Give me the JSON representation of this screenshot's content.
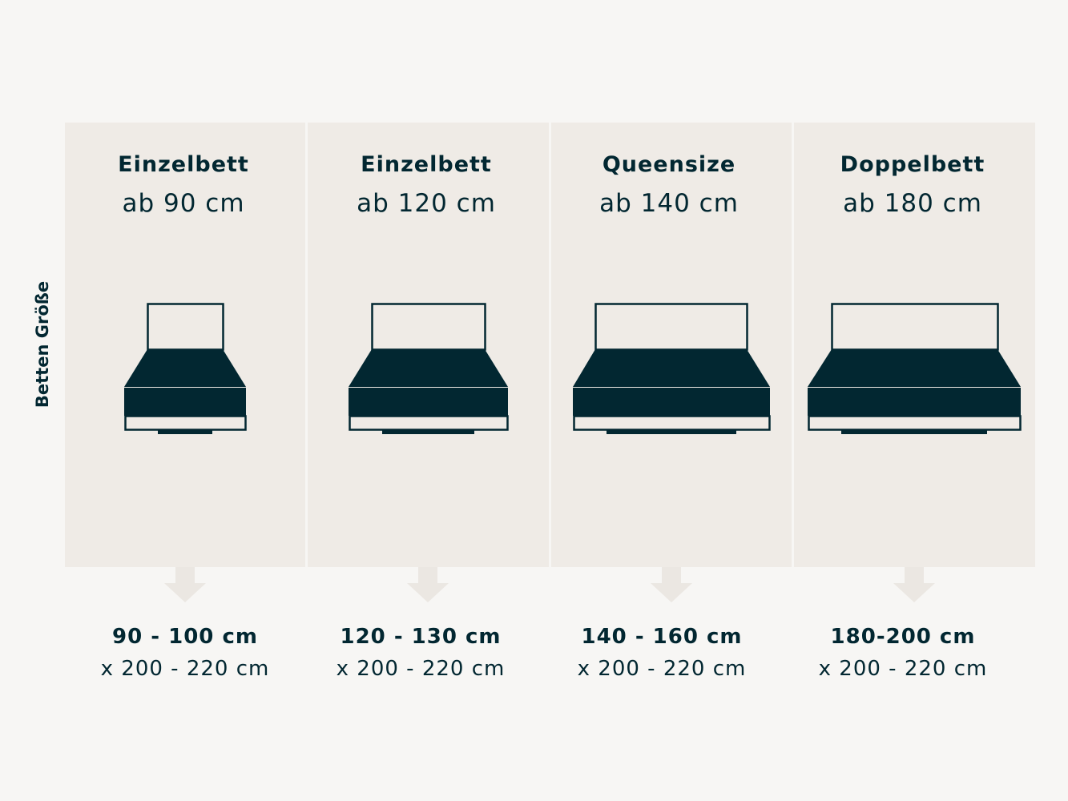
{
  "axis_label": "Betten Größe",
  "colors": {
    "background": "#f7f6f4",
    "panel": "#efebe6",
    "ink": "#022731",
    "arrow": "#ebe7e2"
  },
  "beds": [
    {
      "type": "Einzelbett",
      "from": "ab 90 cm",
      "width_range": "90 - 100 cm",
      "length_range": "x 200 - 220 cm"
    },
    {
      "type": "Einzelbett",
      "from": "ab 120 cm",
      "width_range": "120 - 130 cm",
      "length_range": "x 200 - 220 cm"
    },
    {
      "type": "Queensize",
      "from": "ab 140 cm",
      "width_range": "140 - 160 cm",
      "length_range": "x 200 - 220 cm"
    },
    {
      "type": "Doppelbett",
      "from": "ab 180 cm",
      "width_range": "180-200 cm",
      "length_range": "x 200 - 220 cm"
    }
  ]
}
